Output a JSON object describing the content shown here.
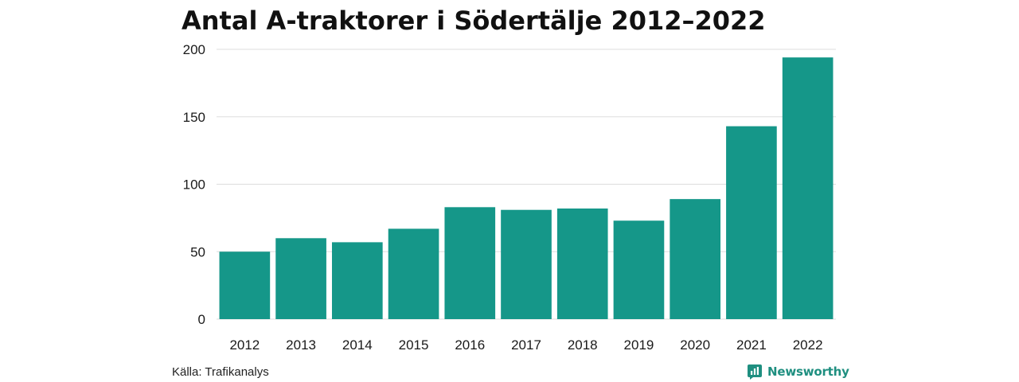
{
  "header": {
    "title": "Antal A-traktorer i Södertälje 2012–2022"
  },
  "footer": {
    "source": "Källa: Trafikanalys",
    "brand": "Newsworthy",
    "brand_icon": "newsworthy-logo-icon"
  },
  "colors": {
    "bar": "#159789",
    "grid": "#dddddd",
    "brand": "#1f8f80"
  },
  "chart_data": {
    "type": "bar",
    "title": "Antal A-traktorer i Södertälje 2012–2022",
    "xlabel": "",
    "ylabel": "",
    "categories": [
      "2012",
      "2013",
      "2014",
      "2015",
      "2016",
      "2017",
      "2018",
      "2019",
      "2020",
      "2021",
      "2022"
    ],
    "values": [
      50,
      60,
      57,
      67,
      83,
      81,
      82,
      73,
      89,
      143,
      194
    ],
    "ylim": [
      0,
      200
    ],
    "yticks": [
      "0",
      "50",
      "100",
      "150",
      "200"
    ],
    "grid": true,
    "legend": "none"
  }
}
